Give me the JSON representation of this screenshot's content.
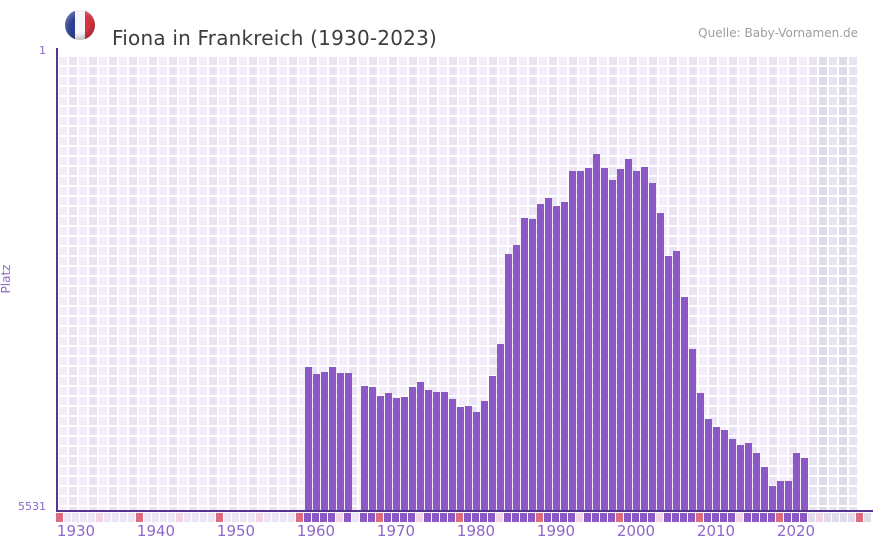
{
  "header": {
    "title": "Fiona in Frankreich (1930-2023)",
    "source": "Quelle: Baby-Vornamen.de",
    "flag_icon": "french-flag"
  },
  "axes": {
    "y_label": "Platz",
    "y_top_tick": "1",
    "y_bottom_tick": "5531",
    "x_ticks": [
      "1930",
      "1940",
      "1950",
      "1960",
      "1970",
      "1980",
      "1990",
      "2000",
      "2010",
      "2020"
    ]
  },
  "colors": {
    "bar": "#8b58c6",
    "axis_line": "#563492",
    "tick_text": "#8d68c9",
    "title_text": "#3d3d3d",
    "source_text": "#9c9c9c",
    "decade_cell": "#e06b7c",
    "half_decade_cell": "#f2d4e2",
    "empty_cell": "#ece6f4",
    "future_cell": "#e0dcea",
    "flag_blue": "#2b3d92",
    "flag_white": "#f6f6f9",
    "flag_red": "#d63340"
  },
  "chart_data": {
    "type": "bar",
    "title": "Fiona in Frankreich (1930-2023)",
    "xlabel": "",
    "ylabel": "Platz",
    "ylim": [
      1,
      5531
    ],
    "y_axis_inverted_rank_scale": true,
    "x_domain_years": [
      1928,
      2029
    ],
    "x_tick_years": [
      1930,
      1940,
      1950,
      1960,
      1970,
      1980,
      1990,
      2000,
      2010,
      2020
    ],
    "grid": "on-checkered",
    "legend_position": "none",
    "missing_years": [
      1965
    ],
    "shaded_no_data_from_year": 2022,
    "series": [
      {
        "name": "Platz von Fiona in Frankreich",
        "years": [
          1959,
          1960,
          1961,
          1962,
          1963,
          1964,
          1966,
          1967,
          1968,
          1969,
          1970,
          1971,
          1972,
          1973,
          1974,
          1975,
          1976,
          1977,
          1978,
          1979,
          1980,
          1981,
          1982,
          1983,
          1984,
          1985,
          1986,
          1987,
          1988,
          1989,
          1990,
          1991,
          1992,
          1993,
          1994,
          1995,
          1996,
          1997,
          1998,
          1999,
          2000,
          2001,
          2002,
          2003,
          2004,
          2005,
          2006,
          2007,
          2008,
          2009,
          2010,
          2011,
          2012,
          2013,
          2014,
          2015,
          2016,
          2017,
          2018,
          2019,
          2020,
          2021
        ],
        "ranks": [
          3789,
          3881,
          3857,
          3789,
          3868,
          3861,
          4023,
          4035,
          4144,
          4114,
          4175,
          4161,
          4035,
          3978,
          4075,
          4092,
          4092,
          4185,
          4275,
          4271,
          4337,
          4205,
          3902,
          3513,
          2419,
          2310,
          1982,
          1994,
          1812,
          1739,
          1836,
          1787,
          1411,
          1411,
          1374,
          1204,
          1374,
          1520,
          1386,
          1265,
          1411,
          1362,
          1557,
          1921,
          2443,
          2383,
          2942,
          3574,
          4108,
          4424,
          4521,
          4558,
          4667,
          4740,
          4716,
          4837,
          5007,
          5238,
          5177,
          5177,
          4837,
          4898
        ]
      }
    ]
  }
}
